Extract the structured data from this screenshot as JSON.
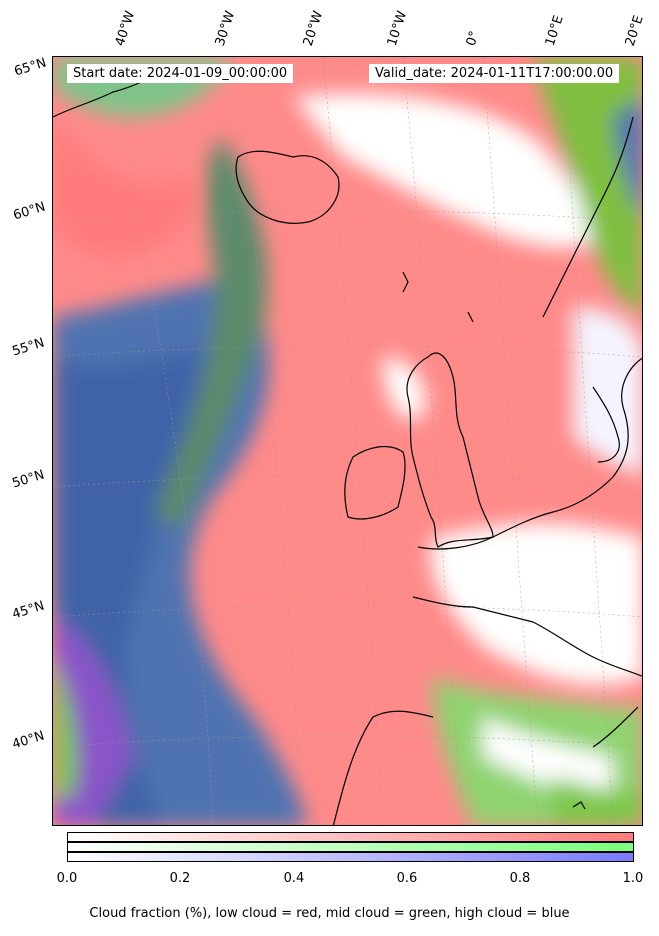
{
  "header": {
    "start_date": "Start date: 2024-01-09_00:00:00",
    "valid_date": "Valid_date: 2024-01-11T17:00:00.00"
  },
  "lon_labels": [
    "40°W",
    "30°W",
    "20°W",
    "10°W",
    "0°",
    "10°E",
    "20°E"
  ],
  "lat_labels": [
    "65°N",
    "60°N",
    "55°N",
    "50°N",
    "45°N",
    "40°N"
  ],
  "colorbar": {
    "ticks": [
      "0.0",
      "0.2",
      "0.4",
      "0.6",
      "0.8",
      "1.0"
    ],
    "caption": "Cloud fraction (%), low cloud = red, mid cloud = green, high cloud = blue",
    "low_color": "#ff7a7a",
    "mid_color": "#7aff7a",
    "high_color": "#7a7aff"
  }
}
